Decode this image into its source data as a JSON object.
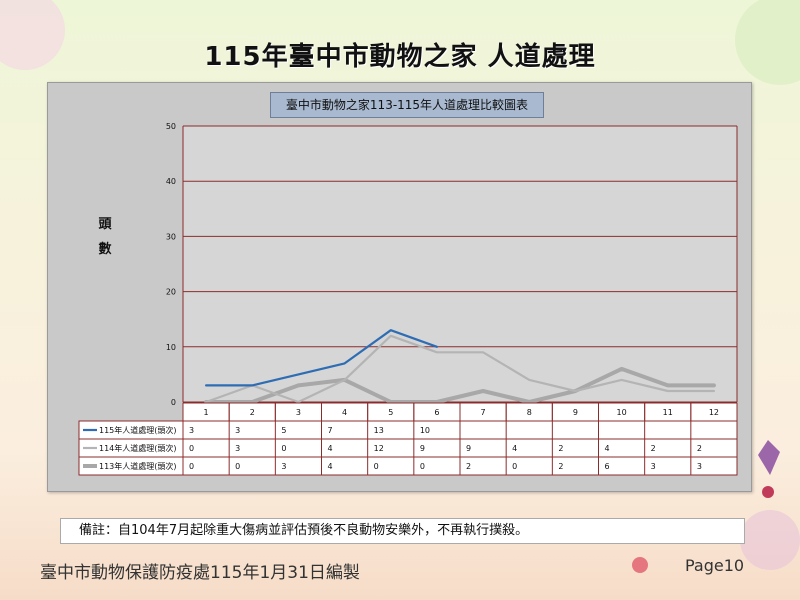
{
  "slide": {
    "title": "115年臺中市動物之家 人道處理",
    "note": "備註：自104年7月起除重大傷病並評估預後不良動物安樂外，不再執行撲殺。",
    "footer": "臺中市動物保護防疫處115年1月31日編製",
    "page_label": "Page10"
  },
  "chart_data": {
    "type": "line",
    "title": "臺中市動物之家113-115年人道處理比較圖表",
    "ylabel": "頭數",
    "ylim": [
      0,
      50
    ],
    "yticks": [
      0,
      10,
      20,
      30,
      40,
      50
    ],
    "categories": [
      "1",
      "2",
      "3",
      "4",
      "5",
      "6",
      "7",
      "8",
      "9",
      "10",
      "11",
      "12"
    ],
    "series": [
      {
        "name": "115年人道處理(頭次)",
        "color": "#2e6db4",
        "values": [
          3,
          3,
          5,
          7,
          13,
          10,
          null,
          null,
          null,
          null,
          null,
          null
        ]
      },
      {
        "name": "114年人道處理(頭次)",
        "color": "#b4b4b4",
        "values": [
          0,
          3,
          0,
          4,
          12,
          9,
          9,
          4,
          2,
          4,
          2,
          2
        ]
      },
      {
        "name": "113年人道處理(頭次)",
        "color": "#a8a8a8",
        "values": [
          0,
          0,
          3,
          4,
          0,
          0,
          2,
          0,
          2,
          6,
          3,
          3
        ]
      }
    ],
    "grid": true,
    "legend": "data-table"
  }
}
